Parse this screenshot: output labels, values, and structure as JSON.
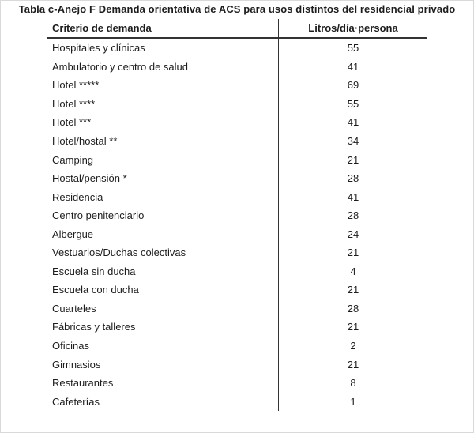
{
  "title": "Tabla c-Anejo F Demanda orientativa de ACS para usos distintos del residencial privado",
  "table": {
    "columns": [
      "Criterio de demanda",
      "Litros/día·persona"
    ],
    "rows": [
      {
        "label": "Hospitales y clínicas",
        "value": "55"
      },
      {
        "label": "Ambulatorio y centro de salud",
        "value": "41"
      },
      {
        "label": "Hotel *****",
        "value": "69"
      },
      {
        "label": "Hotel ****",
        "value": "55"
      },
      {
        "label": "Hotel ***",
        "value": "41"
      },
      {
        "label": "Hotel/hostal **",
        "value": "34"
      },
      {
        "label": "Camping",
        "value": "21"
      },
      {
        "label": "Hostal/pensión *",
        "value": "28"
      },
      {
        "label": "Residencia",
        "value": "41"
      },
      {
        "label": "Centro penitenciario",
        "value": "28"
      },
      {
        "label": "Albergue",
        "value": "24"
      },
      {
        "label": "Vestuarios/Duchas colectivas",
        "value": "21"
      },
      {
        "label": "Escuela sin ducha",
        "value": "4"
      },
      {
        "label": "Escuela con ducha",
        "value": "21"
      },
      {
        "label": "Cuarteles",
        "value": "28"
      },
      {
        "label": "Fábricas y talleres",
        "value": "21"
      },
      {
        "label": "Oficinas",
        "value": "2"
      },
      {
        "label": "Gimnasios",
        "value": "21"
      },
      {
        "label": "Restaurantes",
        "value": "8"
      },
      {
        "label": "Cafeterías",
        "value": "1"
      }
    ]
  },
  "colors": {
    "text": "#1d1d1d",
    "rule": "#333333",
    "page_border": "#d9d9d9",
    "background": "#ffffff"
  }
}
